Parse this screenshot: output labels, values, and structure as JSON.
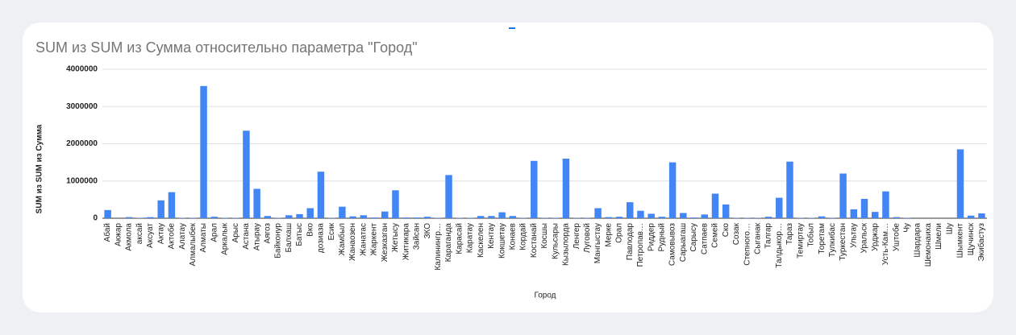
{
  "chart_data": {
    "type": "bar",
    "title": "SUM из SUM из Сумма относительно параметра \"Город\"",
    "x_label": "Город",
    "y_label": "SUM из SUM из Сумма",
    "color": "#4285f4",
    "grid": true,
    "ylim": [
      0,
      4000000
    ],
    "yticks": [
      0,
      1000000,
      2000000,
      3000000,
      4000000
    ],
    "categories": [
      "Абай",
      "Акжар",
      "Акмола",
      "аксай",
      "Аксуат",
      "Актау",
      "Актобе",
      "Алатау",
      "Алмалыбек",
      "Алматы",
      "Арал",
      "Аркалык",
      "Арыс",
      "Астана",
      "Атырау",
      "Аягоз",
      "Байконур",
      "Балхаш",
      "Батыс",
      "Вко",
      "дозиаза",
      "Есик",
      "Жамбыл",
      "Жанаозен",
      "Жанатас",
      "Жаркент",
      "Жезказган",
      "Жетысу",
      "Житикара",
      "Зайсан",
      "ЗКО",
      "Калинингр…",
      "Караганда",
      "Карасай",
      "Каратау",
      "Каскелен",
      "Кентау",
      "Кокшетау",
      "Конаев",
      "Кордай",
      "Костанай",
      "Косшы",
      "Кульсары",
      "Кызылорда",
      "Ленгер",
      "Луговой",
      "Мангыстау",
      "Мерке",
      "Орал",
      "Павлодар",
      "Петропав…",
      "Риддер",
      "Рудный",
      "Самовывоз",
      "Сарыагаш",
      "Сарысу",
      "Сатпаев",
      "Семей",
      "Ско",
      "Созак",
      "Степного…",
      "Сыганак",
      "Талгар",
      "Талдыкор…",
      "Тараз",
      "Темиртау",
      "Тобыл",
      "Торетам",
      "Тулкибас",
      "Туркестан",
      "Ультау",
      "Уральск",
      "Урджар",
      "Усть-Кам…",
      "Уштобе",
      "Чу",
      "Шардара",
      "Шемонаиха",
      "Шмели",
      "Шу",
      "Шымкент",
      "Щучинск",
      "Экибастуз"
    ],
    "values": [
      220000,
      0,
      30000,
      10000,
      30000,
      480000,
      700000,
      10000,
      10000,
      3550000,
      40000,
      10000,
      10000,
      2350000,
      790000,
      60000,
      10000,
      80000,
      110000,
      270000,
      1250000,
      10000,
      310000,
      50000,
      80000,
      20000,
      180000,
      750000,
      20000,
      20000,
      40000,
      10000,
      1160000,
      10000,
      10000,
      60000,
      60000,
      160000,
      60000,
      10000,
      1540000,
      10000,
      10000,
      1600000,
      10000,
      10000,
      270000,
      30000,
      40000,
      430000,
      200000,
      120000,
      40000,
      1500000,
      140000,
      20000,
      100000,
      660000,
      370000,
      10000,
      10000,
      10000,
      40000,
      550000,
      1520000,
      10000,
      10000,
      50000,
      10000,
      1200000,
      240000,
      520000,
      170000,
      720000,
      30000,
      10000,
      0,
      0,
      0,
      0,
      1850000,
      70000,
      130000
    ]
  }
}
